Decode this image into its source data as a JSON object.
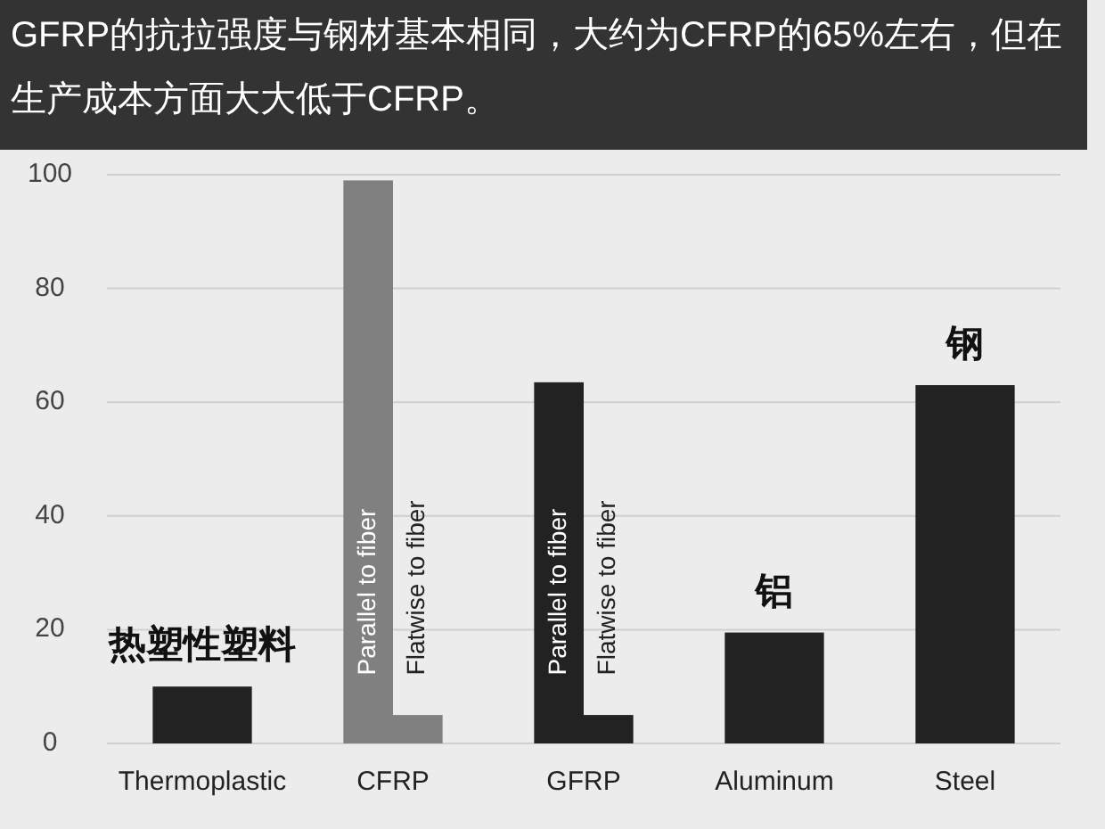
{
  "chart_data": {
    "type": "bar",
    "title": "GFRP的抗拉强度与钢材基本相同，大约为CFRP的65%左右，但在生产成本方面大大低于CFRP。",
    "categories": [
      "Thermoplastic",
      "CFRP",
      "GFRP",
      "Aluminum",
      "Steel"
    ],
    "series": [
      {
        "colors": [
          "#222222",
          "#808080",
          "#222222",
          "#222222",
          "#222222"
        ],
        "values": [
          10,
          99,
          63.5,
          19.5,
          63
        ]
      },
      {
        "colors": [
          null,
          "#808080",
          "#222222",
          null,
          null
        ],
        "values": [
          null,
          5,
          5,
          null,
          null
        ]
      }
    ],
    "ylim": [
      0,
      100
    ],
    "yticks": [
      0,
      20,
      40,
      60,
      80,
      100
    ],
    "grid": "y",
    "annotations": [
      "热塑性塑料",
      {
        "text": "Parallel to fiber",
        "x": "CFRP",
        "y": 12
      },
      {
        "text": "Flatwise to fiber",
        "x": "CFRP",
        "y": 12
      },
      {
        "text": "Parallel to fiber",
        "x": "GFRP",
        "y": 12
      },
      {
        "text": "Flatwise to fiber",
        "x": "GFRP",
        "y": 12
      },
      "铝",
      "钢"
    ]
  }
}
